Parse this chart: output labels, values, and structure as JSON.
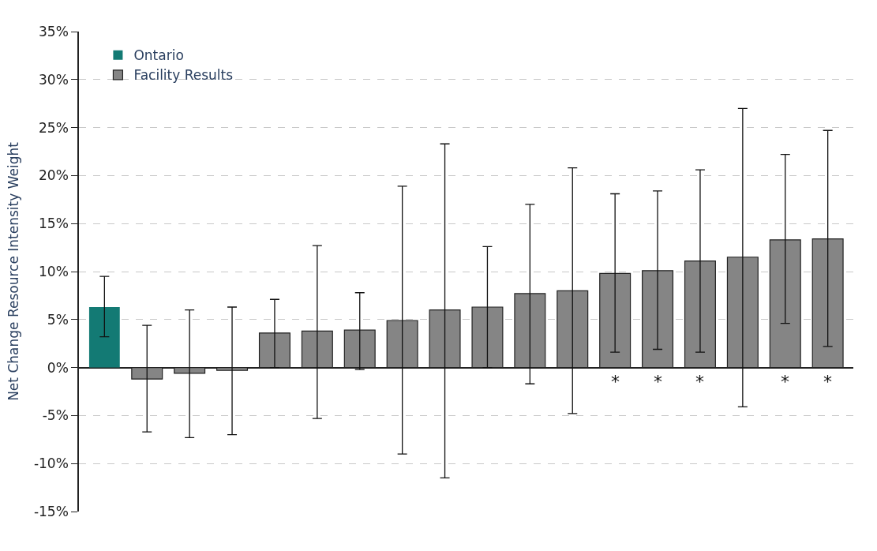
{
  "chart_data": {
    "type": "bar",
    "ylabel": "Net Change Resource Intensity Weight",
    "categories": [
      null,
      null,
      null,
      null,
      null,
      null,
      null,
      null,
      null,
      null,
      null,
      null,
      null,
      null,
      null,
      null,
      null,
      null
    ],
    "series": [
      {
        "name": "Ontario",
        "color": "#137a74",
        "values": [
          6.3,
          null,
          null,
          null,
          null,
          null,
          null,
          null,
          null,
          null,
          null,
          null,
          null,
          null,
          null,
          null,
          null,
          null
        ],
        "errors": [
          [
            3.2,
            9.5
          ],
          null,
          null,
          null,
          null,
          null,
          null,
          null,
          null,
          null,
          null,
          null,
          null,
          null,
          null,
          null,
          null,
          null
        ]
      },
      {
        "name": "Facility Results",
        "color": "#858585",
        "values": [
          null,
          -1.2,
          -0.6,
          -0.3,
          3.6,
          3.8,
          3.9,
          4.9,
          6.0,
          6.3,
          7.7,
          8.0,
          9.8,
          10.1,
          11.1,
          11.5,
          13.3,
          13.4
        ],
        "errors": [
          null,
          [
            -6.7,
            4.4
          ],
          [
            -7.3,
            6.0
          ],
          [
            -7.0,
            6.3
          ],
          [
            0.0,
            7.1
          ],
          [
            -5.3,
            12.7
          ],
          [
            -0.2,
            7.8
          ],
          [
            -9.0,
            18.9
          ],
          [
            -11.5,
            23.3
          ],
          [
            0.0,
            12.6
          ],
          [
            -1.7,
            17.0
          ],
          [
            -4.8,
            20.8
          ],
          [
            1.6,
            18.1
          ],
          [
            1.9,
            18.4
          ],
          [
            1.6,
            20.6
          ],
          [
            -4.1,
            27.0
          ],
          [
            4.6,
            22.2
          ],
          [
            2.2,
            24.7
          ]
        ],
        "value_labels": [
          null,
          null,
          null,
          null,
          null,
          null,
          null,
          null,
          null,
          null,
          null,
          null,
          "*",
          "*",
          "*",
          null,
          "*",
          "*"
        ]
      }
    ],
    "ylim": [
      -15,
      35
    ],
    "yticks": [
      {
        "value": -15,
        "label": "-15%"
      },
      {
        "value": -10,
        "label": "-10%"
      },
      {
        "value": -5,
        "label": "-5%"
      },
      {
        "value": 0,
        "label": "0%"
      },
      {
        "value": 5,
        "label": "5%"
      },
      {
        "value": 10,
        "label": "10%"
      },
      {
        "value": 15,
        "label": "15%"
      },
      {
        "value": 20,
        "label": "20%"
      },
      {
        "value": 25,
        "label": "25%"
      },
      {
        "value": 30,
        "label": "30%"
      },
      {
        "value": 35,
        "label": "35%"
      }
    ],
    "grid": "y",
    "legend": "top left"
  }
}
